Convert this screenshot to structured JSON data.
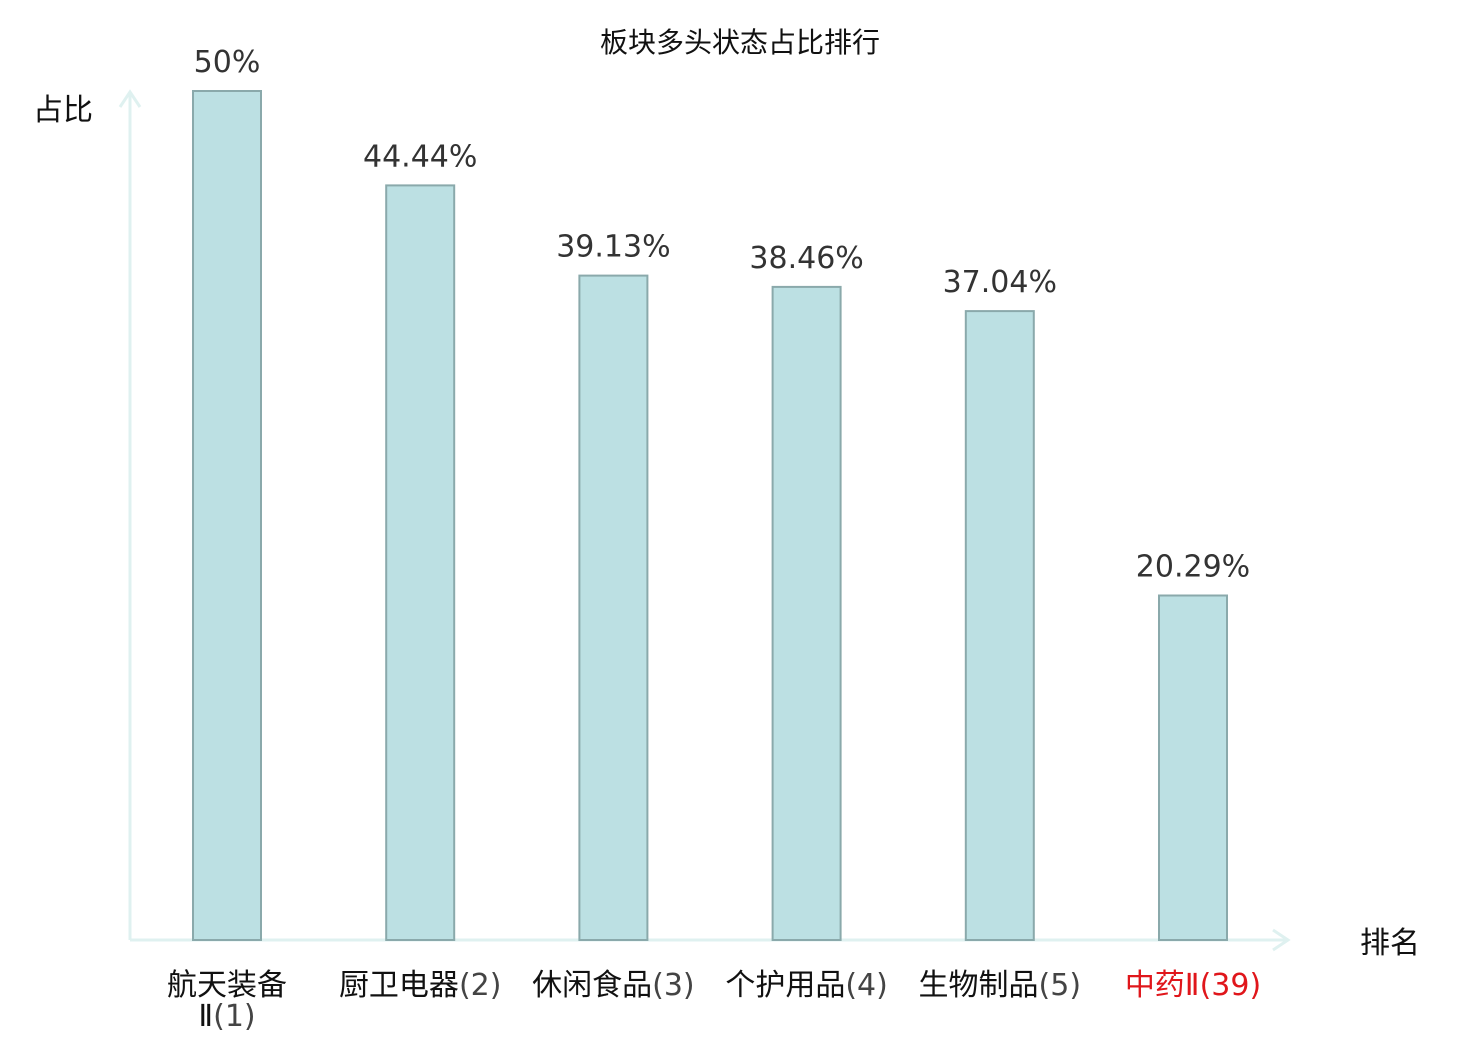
{
  "colors": {
    "bar_fill": "#bce0e3",
    "bar_stroke": "#8aa9ab",
    "axis": "#dff1f0",
    "text": "#111111",
    "value_text": "#333333",
    "rank_text": "#444444",
    "highlight": "#e0161b"
  },
  "chart_data": {
    "type": "bar",
    "title": "板块多头状态占比排行",
    "ylabel": "占比",
    "xlabel": "排名",
    "ylim": [
      0,
      50
    ],
    "grid": false,
    "legend": "none",
    "categories": [
      {
        "name": "航天装备Ⅱ",
        "rank": "(1)",
        "highlight": false
      },
      {
        "name": "厨卫电器",
        "rank": "(2)",
        "highlight": false
      },
      {
        "name": "休闲食品",
        "rank": "(3)",
        "highlight": false
      },
      {
        "name": "个护用品",
        "rank": "(4)",
        "highlight": false
      },
      {
        "name": "生物制品",
        "rank": "(5)",
        "highlight": false
      },
      {
        "name": "中药Ⅱ",
        "rank": "(39)",
        "highlight": true
      }
    ],
    "values": [
      50,
      44.44,
      39.13,
      38.46,
      37.04,
      20.29
    ],
    "value_labels": [
      "50%",
      "44.44%",
      "39.13%",
      "38.46%",
      "37.04%",
      "20.29%"
    ]
  }
}
